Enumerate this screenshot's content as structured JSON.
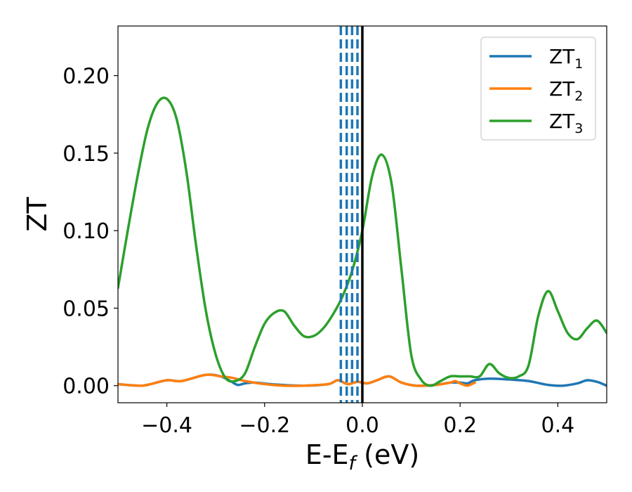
{
  "chart_data": {
    "type": "line",
    "xlabel": "E-E",
    "xlabel_sub": "f",
    "xlabel_unit": " (eV)",
    "ylabel": "ZT",
    "xlim": [
      -0.5,
      0.5
    ],
    "ylim": [
      -0.011,
      0.232
    ],
    "x_ticks": [
      -0.4,
      -0.2,
      0.0,
      0.2,
      0.4
    ],
    "x_tick_labels": [
      "−0.4",
      "−0.2",
      "0.0",
      "0.2",
      "0.4"
    ],
    "y_ticks": [
      0.0,
      0.05,
      0.1,
      0.15,
      0.2
    ],
    "y_tick_labels": [
      "0.00",
      "0.05",
      "0.10",
      "0.15",
      "0.20"
    ],
    "grid": false,
    "legend_position": "top-right",
    "series": [
      {
        "name": "ZT",
        "sub": "1",
        "color": "#1f77b4",
        "x": [
          -0.5,
          -0.46,
          -0.44,
          -0.4,
          -0.37,
          -0.32,
          -0.29,
          -0.27,
          -0.255,
          -0.24,
          -0.22,
          -0.18,
          -0.12,
          -0.07,
          -0.05,
          -0.03,
          -0.01,
          0.01,
          0.03,
          0.055,
          0.08,
          0.11,
          0.15,
          0.18,
          0.2,
          0.215,
          0.23,
          0.26,
          0.3,
          0.34,
          0.38,
          0.41,
          0.44,
          0.46,
          0.48,
          0.5
        ],
        "y": [
          0.001,
          0.0,
          0.0005,
          0.0035,
          0.003,
          0.007,
          0.006,
          0.003,
          0.0005,
          0.0015,
          0.002,
          0.0008,
          0.0,
          0.001,
          0.0035,
          0.001,
          0.0025,
          0.0015,
          0.0035,
          0.006,
          0.002,
          0.0,
          0.0005,
          0.002,
          0.002,
          0.0015,
          0.0035,
          0.0045,
          0.004,
          0.003,
          0.0005,
          0.0,
          0.0015,
          0.0035,
          0.0025,
          0.0
        ]
      },
      {
        "name": "ZT",
        "sub": "2",
        "color": "#ff7f0e",
        "x": [
          -0.5,
          -0.46,
          -0.44,
          -0.4,
          -0.37,
          -0.32,
          -0.29,
          -0.265,
          -0.24,
          -0.2,
          -0.16,
          -0.12,
          -0.07,
          -0.05,
          -0.03,
          -0.01,
          0.01,
          0.03,
          0.055,
          0.08,
          0.11,
          0.15,
          0.18,
          0.19,
          0.2,
          0.215,
          0.23
        ],
        "y": [
          0.001,
          0.0,
          0.0005,
          0.0035,
          0.003,
          0.007,
          0.006,
          0.005,
          0.003,
          0.001,
          0.0,
          0.0,
          0.001,
          0.0035,
          0.001,
          0.0025,
          0.0015,
          0.0035,
          0.006,
          0.002,
          0.0,
          0.0005,
          0.002,
          0.003,
          0.0015,
          0.0,
          0.002
        ]
      },
      {
        "name": "ZT",
        "sub": "3",
        "color": "#2ca02c",
        "x": [
          -0.5,
          -0.48,
          -0.46,
          -0.44,
          -0.42,
          -0.4,
          -0.38,
          -0.36,
          -0.34,
          -0.32,
          -0.3,
          -0.28,
          -0.26,
          -0.24,
          -0.22,
          -0.2,
          -0.18,
          -0.16,
          -0.14,
          -0.12,
          -0.1,
          -0.08,
          -0.06,
          -0.04,
          -0.02,
          0.0,
          0.02,
          0.04,
          0.06,
          0.08,
          0.1,
          0.12,
          0.14,
          0.16,
          0.18,
          0.2,
          0.22,
          0.24,
          0.26,
          0.28,
          0.3,
          0.32,
          0.34,
          0.36,
          0.38,
          0.4,
          0.42,
          0.44,
          0.46,
          0.48,
          0.5
        ],
        "y": [
          0.063,
          0.1,
          0.135,
          0.165,
          0.182,
          0.185,
          0.172,
          0.138,
          0.09,
          0.048,
          0.02,
          0.005,
          0.003,
          0.008,
          0.025,
          0.04,
          0.047,
          0.048,
          0.039,
          0.032,
          0.032,
          0.037,
          0.046,
          0.058,
          0.075,
          0.1,
          0.135,
          0.149,
          0.13,
          0.075,
          0.02,
          0.004,
          0.0,
          0.003,
          0.006,
          0.006,
          0.006,
          0.006,
          0.014,
          0.008,
          0.005,
          0.006,
          0.013,
          0.045,
          0.061,
          0.048,
          0.034,
          0.03,
          0.037,
          0.042,
          0.034
        ]
      }
    ],
    "vertical_lines": [
      {
        "x": -0.044,
        "style": "dashed",
        "color": "#1f77b4"
      },
      {
        "x": -0.032,
        "style": "dashed",
        "color": "#1f77b4"
      },
      {
        "x": -0.021,
        "style": "dashed",
        "color": "#1f77b4"
      },
      {
        "x": -0.01,
        "style": "dashed",
        "color": "#1f77b4"
      },
      {
        "x": 0.0,
        "style": "solid",
        "color": "#000000"
      }
    ]
  }
}
